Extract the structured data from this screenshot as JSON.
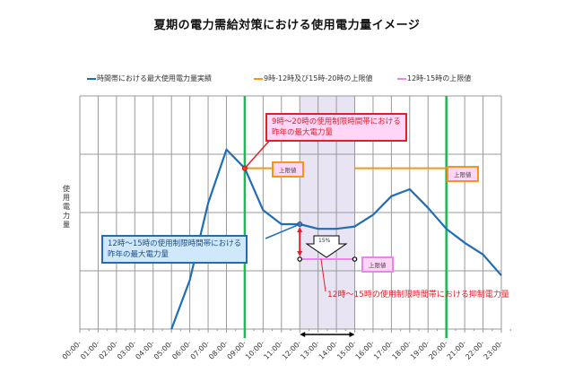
{
  "title": "夏期の電力需給対策における使用電力量イメージ",
  "legend": [
    {
      "label": "時間帯における最大使用電力量実績",
      "color": "#1f6eb5"
    },
    {
      "label": "9時-12時及び15時-20時の上限値",
      "color": "#f7941d"
    },
    {
      "label": "12時-15時の上限値",
      "color": "#ee82ee"
    }
  ],
  "y_label": [
    "使",
    "用",
    "電",
    "力",
    "量"
  ],
  "annotations": {
    "red_callout_line1": "9時～20時の使用制限時間帯における",
    "red_callout_line2": "昨年の最大電力量",
    "blue_callout_line1": "12時～15時の使用制限時間帯における",
    "blue_callout_line2": "昨年の最大電力量",
    "limit_badge_orange_1": "上限値",
    "limit_badge_orange_2": "上限値",
    "limit_badge_pink": "上限値",
    "reduction_percent": "15%",
    "reduction_note": "12時～15時の使用制限時間帯における抑制電力量"
  },
  "colors": {
    "usage_line": "#1f6eb5",
    "orange_limit": "#f7941d",
    "pink_limit": "#ee82ee",
    "restriction_boundary": "#1db954",
    "shaded_band": "#e9e4f3",
    "grid": "#999999",
    "callout_red": "#e0202a"
  },
  "chart_data": {
    "type": "line",
    "title": "夏期の電力需給対策における使用電力量イメージ",
    "xlabel": "",
    "ylabel": "使用電力量",
    "categories": [
      "00:00-",
      "01:00-",
      "02:00-",
      "03:00-",
      "04:00-",
      "05:00-",
      "06:00-",
      "07:00-",
      "08:00-",
      "09:00-",
      "10:00-",
      "11:00-",
      "12:00-",
      "13:00-",
      "14:00-",
      "15:00-",
      "16:00-",
      "17:00-",
      "18:00-",
      "19:00-",
      "20:00-",
      "21:00-",
      "22:00-",
      "23:00-"
    ],
    "series": [
      {
        "name": "時間帯における最大使用電力量実績",
        "values": [
          null,
          null,
          null,
          null,
          null,
          0,
          21,
          54,
          77,
          69,
          51,
          45,
          45,
          43,
          43,
          44,
          49,
          57,
          60,
          52,
          43,
          37,
          32,
          23
        ]
      },
      {
        "name": "9時-12時及び15時-20時の上限値",
        "values": [
          null,
          null,
          null,
          null,
          null,
          null,
          null,
          null,
          null,
          69,
          69,
          69,
          null,
          null,
          null,
          69,
          69,
          69,
          69,
          69,
          69,
          null,
          null,
          null
        ]
      },
      {
        "name": "12時-15時の上限値",
        "values": [
          null,
          null,
          null,
          null,
          null,
          null,
          null,
          null,
          null,
          null,
          null,
          null,
          30,
          30,
          30,
          30,
          null,
          null,
          null,
          null,
          null,
          null,
          null,
          null
        ]
      }
    ],
    "ylim": [
      0,
      100
    ],
    "grid": true,
    "legend_position": "top",
    "vertical_markers": [
      "09:00",
      "20:00"
    ],
    "shaded_range": [
      "12:00",
      "15:00"
    ],
    "annotations": [
      "9時～20時の使用制限時間帯における昨年の最大電力量",
      "12時～15時の使用制限時間帯における昨年の最大電力量",
      "上限値",
      "15%",
      "12時～15時の使用制限時間帯における抑制電力量"
    ]
  }
}
